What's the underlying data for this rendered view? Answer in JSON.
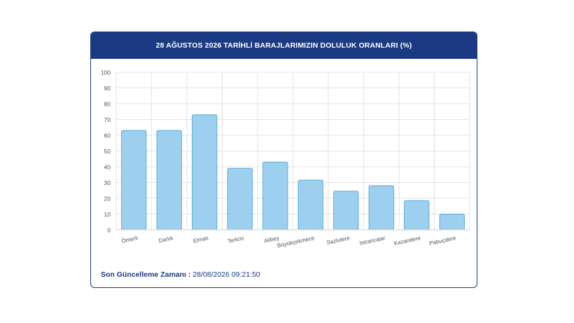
{
  "header": {
    "title": "28 AĞUSTOS 2026 TARİHLİ BARAJLARIMIZIN DOLULUK ORANLARI (%)"
  },
  "footer": {
    "label": "Son Güncelleme Zamanı :",
    "value": "28/08/2026 09:21:50"
  },
  "chart_data": {
    "type": "bar",
    "title": "28 AĞUSTOS 2026 TARİHLİ BARAJLARIMIZIN DOLULUK ORANLARI (%)",
    "categories": [
      "Ömerli",
      "Darlık",
      "Elmalı",
      "Terkos",
      "Alibey",
      "Büyükçekmece",
      "Sazlıdere",
      "Istrancalar",
      "Kazandere",
      "Pabuçdere"
    ],
    "values": [
      63,
      63,
      73,
      39,
      43,
      31.5,
      24.5,
      28,
      18.5,
      10
    ],
    "ylim": [
      0,
      100
    ],
    "yticks": [
      0,
      10,
      20,
      30,
      40,
      50,
      60,
      70,
      80,
      90,
      100
    ],
    "grid": true,
    "colors": {
      "bar_fill": "#9dd0ee",
      "bar_stroke": "#5aaed8",
      "grid": "#e3e3e3",
      "axis_text": "#555555"
    }
  }
}
